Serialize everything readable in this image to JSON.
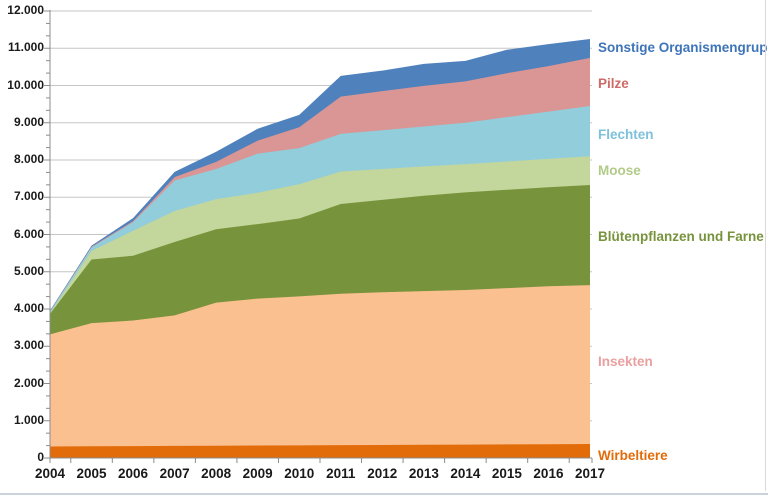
{
  "chart_data": {
    "type": "area",
    "stacked": true,
    "title": "",
    "xlabel": "",
    "ylabel": "",
    "grid": true,
    "legend_position": "right",
    "grid_color": "#c6c6c6",
    "axis_color": "#8c8c8c",
    "categories": [
      "2004",
      "2005",
      "2006",
      "2007",
      "2008",
      "2009",
      "2010",
      "2011",
      "2012",
      "2013",
      "2014",
      "2015",
      "2016",
      "2017"
    ],
    "series": [
      {
        "name": "Wirbeltiere",
        "color": "#E36C0A",
        "label_color": "#E36C0A",
        "values": [
          310,
          315,
          320,
          325,
          330,
          335,
          340,
          345,
          350,
          355,
          360,
          365,
          370,
          375
        ]
      },
      {
        "name": "Insekten",
        "color": "#FAC090",
        "label_color": "#E8A1A0",
        "values": [
          3010,
          3305,
          3370,
          3505,
          3840,
          3945,
          4000,
          4065,
          4100,
          4125,
          4150,
          4195,
          4240,
          4265
        ]
      },
      {
        "name": "Blütenpflanzen und Farne",
        "color": "#77933C",
        "label_color": "#77933C",
        "values": [
          550,
          1710,
          1740,
          1970,
          1970,
          2000,
          2090,
          2410,
          2480,
          2560,
          2620,
          2640,
          2660,
          2690
        ]
      },
      {
        "name": "Moose",
        "color": "#C3D69B",
        "label_color": "#B2CB88",
        "values": [
          20,
          230,
          670,
          830,
          810,
          840,
          920,
          870,
          830,
          790,
          760,
          760,
          760,
          770
        ]
      },
      {
        "name": "Flechten",
        "color": "#92CDDC",
        "label_color": "#7EC1DB",
        "values": [
          40,
          90,
          230,
          820,
          810,
          1050,
          970,
          1010,
          1040,
          1070,
          1110,
          1190,
          1270,
          1350
        ]
      },
      {
        "name": "Pilze",
        "color": "#D99694",
        "label_color": "#CD6A66",
        "values": [
          10,
          20,
          30,
          90,
          190,
          350,
          560,
          1000,
          1050,
          1090,
          1110,
          1180,
          1220,
          1290
        ]
      },
      {
        "name": "Sonstige Organismengruppen",
        "color": "#4F81BD",
        "label_color": "#3E74B9",
        "values": [
          20,
          30,
          80,
          140,
          270,
          320,
          330,
          560,
          550,
          590,
          550,
          630,
          590,
          510
        ]
      }
    ],
    "y_axis": {
      "min": 0,
      "max": 12000,
      "step": 1000,
      "tick_labels": [
        "0",
        "1.000",
        "2.000",
        "3.000",
        "4.000",
        "5.000",
        "6.000",
        "7.000",
        "8.000",
        "9.000",
        "10.000",
        "11.000",
        "12.000"
      ]
    },
    "totals_by_year": [
      3960,
      5700,
      6440,
      7680,
      8220,
      8840,
      9210,
      10260,
      10400,
      10580,
      10660,
      10960,
      11110,
      11250
    ]
  }
}
